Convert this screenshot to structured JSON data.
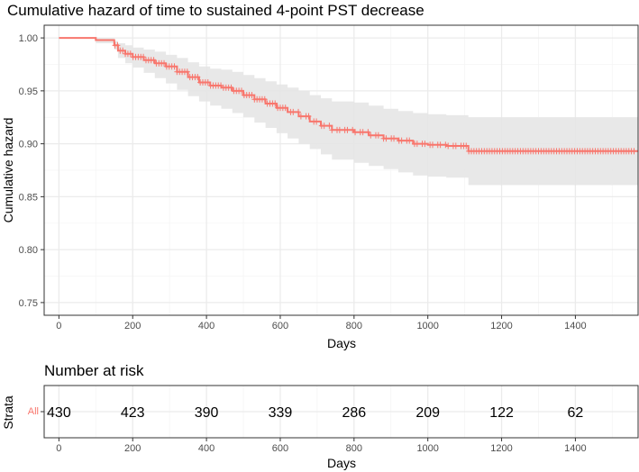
{
  "colors": {
    "series": "#F8766D",
    "ci_band": "#e5e5e5",
    "grid_major": "#ebebeb",
    "grid_minor": "#f5f5f5",
    "panel_border": "#333333"
  },
  "chart_data": [
    {
      "type": "line",
      "title": "Cumulative hazard of time to sustained 4-point PST decrease",
      "xlabel": "Days",
      "ylabel": "Cumulative hazard",
      "xlim": [
        -40,
        1570
      ],
      "ylim": [
        0.738,
        1.012
      ],
      "x_ticks": [
        0,
        200,
        400,
        600,
        800,
        1000,
        1200,
        1400
      ],
      "y_ticks": [
        0.75,
        0.8,
        0.85,
        0.9,
        0.95,
        1.0
      ],
      "y_tick_labels": [
        "0.75",
        "0.80",
        "0.85",
        "0.90",
        "0.95",
        "1.00"
      ],
      "grid": true,
      "legend": "none",
      "series": [
        {
          "step": true,
          "x": [
            0,
            95,
            100,
            150,
            160,
            180,
            200,
            230,
            260,
            290,
            320,
            350,
            380,
            410,
            440,
            470,
            500,
            530,
            560,
            590,
            620,
            650,
            680,
            710,
            740,
            800,
            840,
            880,
            920,
            960,
            1000,
            1050,
            1110,
            1570
          ],
          "y": [
            1.0,
            1.0,
            0.998,
            0.993,
            0.988,
            0.985,
            0.982,
            0.979,
            0.976,
            0.973,
            0.968,
            0.963,
            0.958,
            0.955,
            0.953,
            0.95,
            0.946,
            0.942,
            0.938,
            0.934,
            0.93,
            0.926,
            0.921,
            0.917,
            0.913,
            0.911,
            0.908,
            0.905,
            0.903,
            0.9,
            0.899,
            0.898,
            0.893,
            0.893
          ],
          "ci_lower": [
            1.0,
            1.0,
            0.995,
            0.989,
            0.981,
            0.976,
            0.972,
            0.967,
            0.962,
            0.957,
            0.951,
            0.945,
            0.94,
            0.936,
            0.933,
            0.929,
            0.925,
            0.92,
            0.915,
            0.91,
            0.905,
            0.9,
            0.895,
            0.89,
            0.885,
            0.882,
            0.879,
            0.876,
            0.873,
            0.87,
            0.869,
            0.868,
            0.861,
            0.861
          ],
          "ci_upper": [
            1.0,
            1.0,
            1.0,
            0.997,
            0.995,
            0.993,
            0.991,
            0.989,
            0.987,
            0.984,
            0.981,
            0.977,
            0.973,
            0.971,
            0.97,
            0.968,
            0.965,
            0.962,
            0.959,
            0.956,
            0.953,
            0.95,
            0.946,
            0.943,
            0.94,
            0.939,
            0.936,
            0.933,
            0.931,
            0.929,
            0.928,
            0.927,
            0.925,
            0.925
          ]
        }
      ]
    },
    {
      "type": "table",
      "title": "Number at risk",
      "xlabel": "Days",
      "ylabel": "Strata",
      "strata": [
        "All"
      ],
      "x_ticks": [
        0,
        200,
        400,
        600,
        800,
        1000,
        1200,
        1400
      ],
      "x": [
        0,
        200,
        400,
        600,
        800,
        1000,
        1200,
        1400
      ],
      "values": [
        430,
        423,
        390,
        339,
        286,
        209,
        122,
        62
      ]
    }
  ]
}
